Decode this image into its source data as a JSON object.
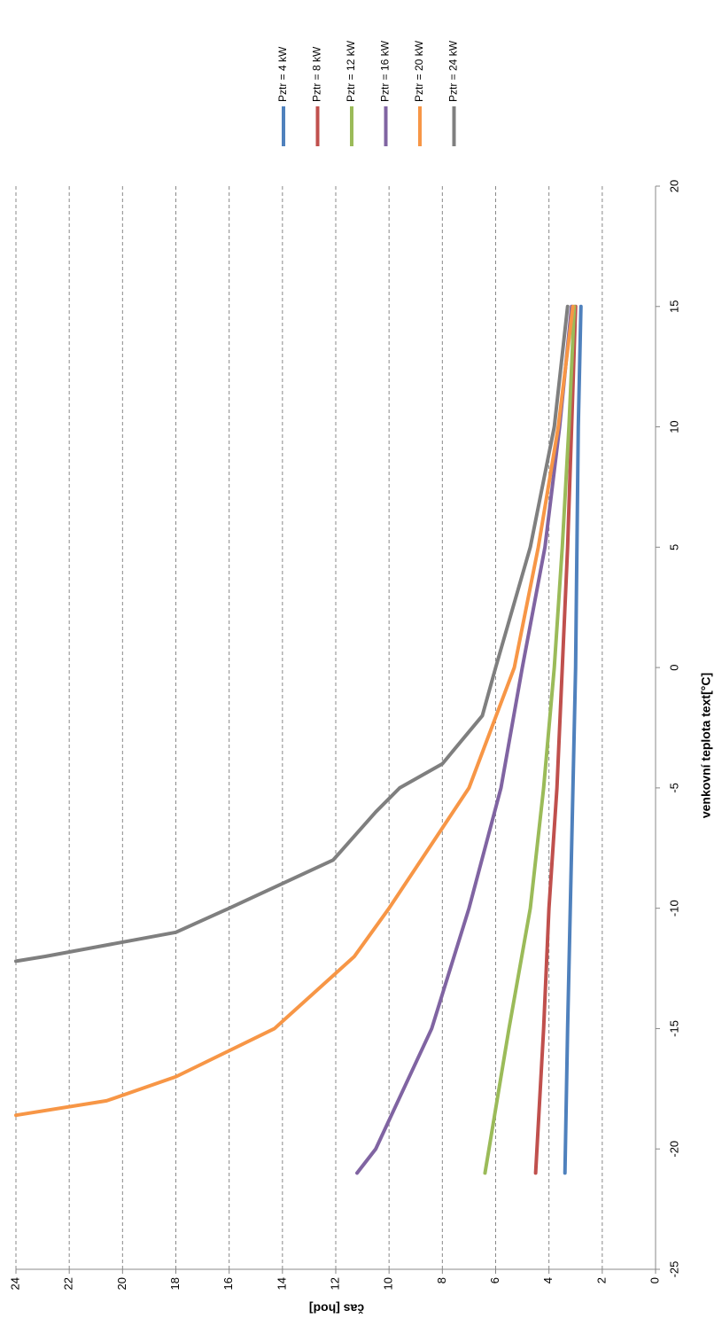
{
  "chart_data": {
    "type": "line",
    "x_label": "venkovní teplota text[°C]",
    "y_label": "čas [hod]",
    "xlim": [
      -25,
      20
    ],
    "xticks": [
      -25,
      -20,
      -15,
      -10,
      -5,
      0,
      5,
      10,
      15,
      20
    ],
    "ylim": [
      0,
      24
    ],
    "yticks": [
      0,
      2,
      4,
      6,
      8,
      10,
      12,
      14,
      16,
      18,
      20,
      22,
      24
    ],
    "grid": true,
    "legend": "right",
    "series": [
      {
        "name": "Pztr = 4 kW",
        "color": "#4f81bd",
        "x": [
          -21,
          -15,
          -10,
          -5,
          0,
          5,
          10,
          15
        ],
        "values": [
          3.4,
          3.3,
          3.2,
          3.1,
          3.0,
          2.95,
          2.9,
          2.8
        ]
      },
      {
        "name": "Pztr = 8 kW",
        "color": "#c0504d",
        "x": [
          -21,
          -15,
          -10,
          -5,
          0,
          5,
          10,
          15
        ],
        "values": [
          4.5,
          4.2,
          4.0,
          3.7,
          3.5,
          3.3,
          3.15,
          3.0
        ]
      },
      {
        "name": "Pztr = 12 kW",
        "color": "#9bbb59",
        "x": [
          -21,
          -15,
          -10,
          -5,
          0,
          5,
          10,
          15
        ],
        "values": [
          6.4,
          5.5,
          4.7,
          4.2,
          3.8,
          3.5,
          3.25,
          3.05
        ]
      },
      {
        "name": "Pztr = 16 kW",
        "color": "#8064a2",
        "x": [
          -21,
          -20,
          -15,
          -10,
          -5,
          0,
          5,
          10,
          15
        ],
        "values": [
          11.2,
          10.5,
          8.4,
          7.0,
          5.8,
          5.0,
          4.15,
          3.6,
          3.15
        ]
      },
      {
        "name": "Pztr = 20 kW",
        "color": "#f79646",
        "x": [
          -18.6,
          -18,
          -17,
          -15,
          -12,
          -10,
          -5,
          0,
          5,
          10,
          15
        ],
        "values": [
          24,
          20.6,
          18,
          14.3,
          11.3,
          10,
          7.0,
          5.3,
          4.4,
          3.65,
          3.1
        ]
      },
      {
        "name": "Pztr = 24 kW",
        "color": "#7f7f7f",
        "x": [
          -12.2,
          -12,
          -11,
          -10,
          -8,
          -6,
          -5,
          -4,
          -2,
          0,
          5,
          10,
          15
        ],
        "values": [
          24,
          22.9,
          18,
          16,
          12.1,
          10.5,
          9.6,
          8,
          6.5,
          6,
          4.7,
          3.8,
          3.3
        ]
      }
    ]
  }
}
